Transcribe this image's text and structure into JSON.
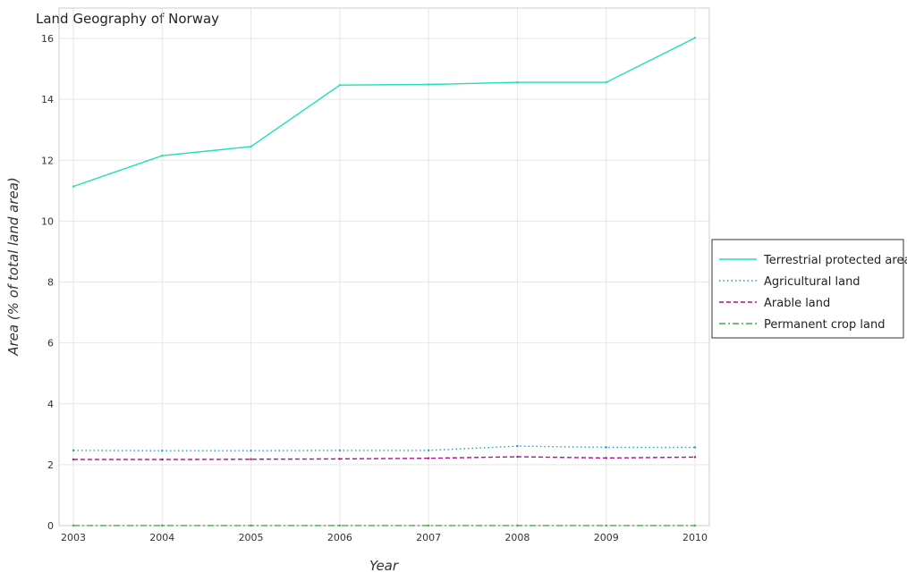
{
  "chart_data": {
    "type": "line",
    "title": "Land Geography of Norway",
    "xlabel": "Year",
    "ylabel": "Area (% of total land area)",
    "x": [
      "2003",
      "2004",
      "2005",
      "2006",
      "2007",
      "2008",
      "2009",
      "2010"
    ],
    "ylim": [
      0,
      17
    ],
    "yticks": [
      0,
      2,
      4,
      6,
      8,
      10,
      12,
      14,
      16
    ],
    "grid": true,
    "legend_position": "right",
    "series": [
      {
        "name": "Terrestrial protected areas",
        "color": "#1de0b8",
        "dash": "solid",
        "values": [
          11.14,
          12.15,
          12.45,
          14.47,
          14.49,
          14.56,
          14.56,
          16.02
        ]
      },
      {
        "name": "Agricultural land",
        "color": "#1aa3c6",
        "dash": "dotted",
        "values": [
          2.47,
          2.46,
          2.46,
          2.47,
          2.47,
          2.61,
          2.57,
          2.57
        ]
      },
      {
        "name": "Arable land",
        "color": "#a0188a",
        "dash": "dashed",
        "values": [
          2.17,
          2.17,
          2.18,
          2.19,
          2.21,
          2.26,
          2.22,
          2.25
        ]
      },
      {
        "name": "Permanent crop land",
        "color": "#3cb43c",
        "dash": "dashdot",
        "values": [
          0.003,
          0.003,
          0.003,
          0.003,
          0.003,
          0.003,
          0.003,
          0.003
        ]
      }
    ]
  }
}
